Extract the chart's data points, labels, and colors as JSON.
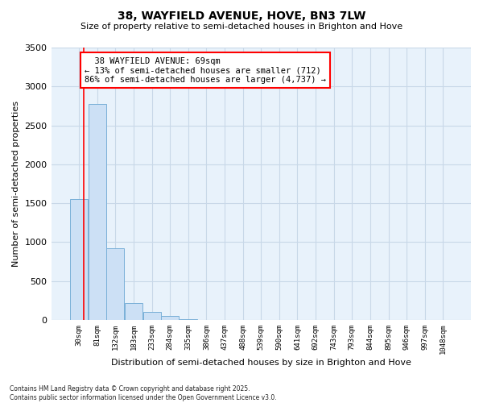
{
  "title": "38, WAYFIELD AVENUE, HOVE, BN3 7LW",
  "subtitle": "Size of property relative to semi-detached houses in Brighton and Hove",
  "xlabel": "Distribution of semi-detached houses by size in Brighton and Hove",
  "ylabel": "Number of semi-detached properties",
  "footer_line1": "Contains HM Land Registry data © Crown copyright and database right 2025.",
  "footer_line2": "Contains public sector information licensed under the Open Government Licence v3.0.",
  "bin_labels": [
    "30sqm",
    "81sqm",
    "132sqm",
    "183sqm",
    "233sqm",
    "284sqm",
    "335sqm",
    "386sqm",
    "437sqm",
    "488sqm",
    "539sqm",
    "590sqm",
    "641sqm",
    "692sqm",
    "743sqm",
    "793sqm",
    "844sqm",
    "895sqm",
    "946sqm",
    "997sqm",
    "1048sqm"
  ],
  "bar_values": [
    1550,
    2780,
    920,
    215,
    100,
    50,
    10,
    1,
    0,
    0,
    0,
    0,
    0,
    0,
    0,
    0,
    0,
    0,
    0,
    0,
    0
  ],
  "bar_color": "#cce0f5",
  "bar_edge_color": "#7ab0d8",
  "grid_color": "#c8d8e8",
  "background_color": "#ffffff",
  "plot_bg_color": "#e8f2fb",
  "red_line_x": 0.27,
  "annotation_title": "38 WAYFIELD AVENUE: 69sqm",
  "annotation_line2": "← 13% of semi-detached houses are smaller (712)",
  "annotation_line3": "86% of semi-detached houses are larger (4,737) →",
  "annotation_box_color": "white",
  "annotation_box_edge_color": "red",
  "ylim": [
    0,
    3500
  ],
  "yticks": [
    0,
    500,
    1000,
    1500,
    2000,
    2500,
    3000,
    3500
  ]
}
